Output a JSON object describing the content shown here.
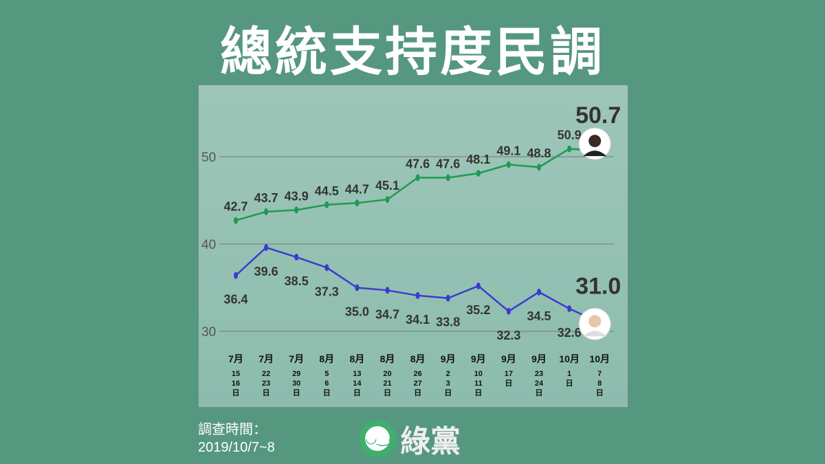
{
  "title": "總統支持度民調",
  "footer": {
    "survey_label": "調查時間：",
    "survey_date": "2019/10/7~8",
    "logo_text": "綠黨"
  },
  "chart_data": {
    "type": "line",
    "title": "總統支持度民調",
    "ylim": [
      30,
      50
    ],
    "yticks": [
      30,
      40,
      50
    ],
    "grid": true,
    "categories": [
      {
        "month": "7月",
        "days": [
          "15",
          "16",
          "日"
        ]
      },
      {
        "month": "7月",
        "days": [
          "22",
          "23",
          "日"
        ]
      },
      {
        "month": "7月",
        "days": [
          "29",
          "30",
          "日"
        ]
      },
      {
        "month": "8月",
        "days": [
          "5",
          "6",
          "日"
        ]
      },
      {
        "month": "8月",
        "days": [
          "13",
          "14",
          "日"
        ]
      },
      {
        "month": "8月",
        "days": [
          "20",
          "21",
          "日"
        ]
      },
      {
        "month": "8月",
        "days": [
          "26",
          "27",
          "日"
        ]
      },
      {
        "month": "9月",
        "days": [
          "2",
          "3",
          "日"
        ]
      },
      {
        "month": "9月",
        "days": [
          "10",
          "11",
          "日"
        ]
      },
      {
        "month": "9月",
        "days": [
          "17",
          "日"
        ]
      },
      {
        "month": "9月",
        "days": [
          "23",
          "24",
          "日"
        ]
      },
      {
        "month": "10月",
        "days": [
          "1",
          "日"
        ]
      },
      {
        "month": "10月",
        "days": [
          "7",
          "8",
          "日"
        ]
      }
    ],
    "series": [
      {
        "name": "green-candidate",
        "color": "#1f9a50",
        "values": [
          42.7,
          43.7,
          43.9,
          44.5,
          44.7,
          45.1,
          47.6,
          47.6,
          48.1,
          49.1,
          48.8,
          50.9,
          50.7
        ],
        "final_label": "50.7",
        "label_pos": "above"
      },
      {
        "name": "blue-candidate",
        "color": "#3d3ad0",
        "values": [
          36.4,
          39.6,
          38.5,
          37.3,
          35.0,
          34.7,
          34.1,
          33.8,
          35.2,
          32.3,
          34.5,
          32.6,
          31.0
        ],
        "final_label": "31.0",
        "label_pos": "below"
      }
    ]
  }
}
